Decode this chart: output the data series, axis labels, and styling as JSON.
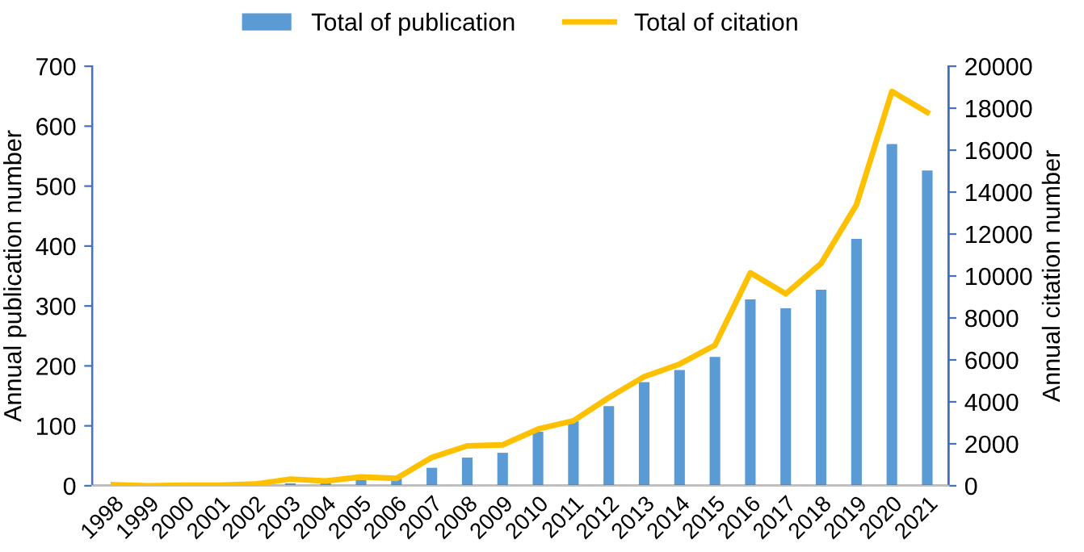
{
  "chart_data": {
    "type": "bar",
    "categories": [
      "1998",
      "1999",
      "2000",
      "2001",
      "2002",
      "2003",
      "2004",
      "2005",
      "2006",
      "2007",
      "2008",
      "2009",
      "2010",
      "2011",
      "2012",
      "2013",
      "2014",
      "2015",
      "2016",
      "2017",
      "2018",
      "2019",
      "2020",
      "2021"
    ],
    "series": [
      {
        "name": "Total of publication",
        "color": "#5b9bd5",
        "values": [
          0,
          0,
          null,
          null,
          null,
          4,
          5,
          10,
          12,
          30,
          47,
          55,
          90,
          108,
          133,
          173,
          193,
          215,
          311,
          296,
          327,
          412,
          570,
          526
        ]
      },
      {
        "name": "Total of citation",
        "type": "line",
        "axis": "y2",
        "color": "#ffc000",
        "values": [
          50,
          0,
          30,
          30,
          80,
          320,
          230,
          420,
          350,
          1350,
          1900,
          1950,
          2700,
          3100,
          4200,
          5200,
          5800,
          6700,
          10150,
          9150,
          10600,
          13400,
          18800,
          17800
        ]
      }
    ],
    "ylabel": "Annual publication number",
    "y2label": "Annual citation number",
    "ylim": [
      0,
      700
    ],
    "yticks": [
      0,
      100,
      200,
      300,
      400,
      500,
      600,
      700
    ],
    "y2lim": [
      0,
      20000
    ],
    "y2ticks": [
      0,
      2000,
      4000,
      6000,
      8000,
      10000,
      12000,
      14000,
      16000,
      18000,
      20000
    ],
    "grid": false,
    "legend": "top",
    "marker": "none",
    "line_style": "solid"
  }
}
